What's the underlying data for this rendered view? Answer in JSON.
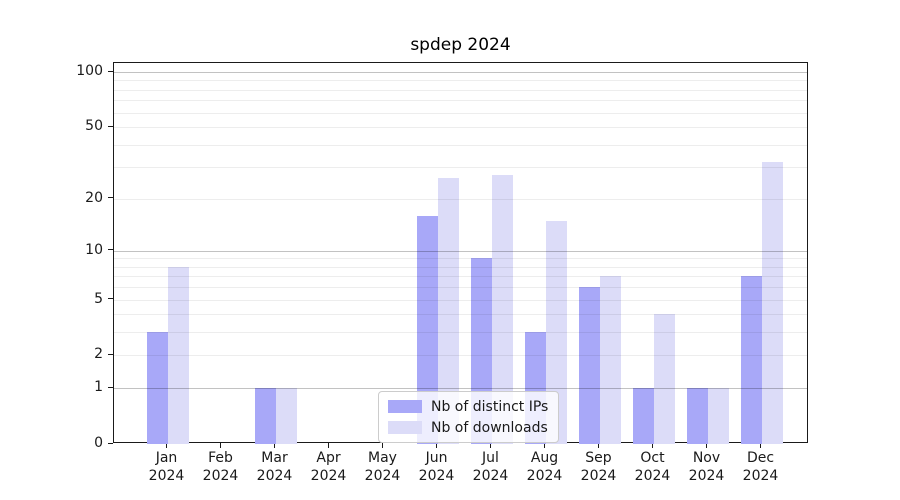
{
  "title": "spdep 2024",
  "legend": {
    "items": [
      {
        "label": "Nb of distinct IPs",
        "color": "#a8a8f8"
      },
      {
        "label": "Nb of downloads",
        "color": "#dcdcf8"
      }
    ]
  },
  "chart_data": {
    "type": "bar",
    "title": "spdep 2024",
    "categories": [
      "Jan 2024",
      "Feb 2024",
      "Mar 2024",
      "Apr 2024",
      "May 2024",
      "Jun 2024",
      "Jul 2024",
      "Aug 2024",
      "Sep 2024",
      "Oct 2024",
      "Nov 2024",
      "Dec 2024"
    ],
    "series": [
      {
        "name": "Nb of distinct IPs",
        "color": "#a8a8f8",
        "values": [
          3,
          0,
          1,
          0,
          0,
          16,
          9,
          3,
          6,
          1,
          1,
          7
        ]
      },
      {
        "name": "Nb of downloads",
        "color": "#dcdcf8",
        "values": [
          8,
          0,
          1,
          0,
          0,
          26,
          27,
          15,
          7,
          4,
          1,
          32
        ]
      }
    ],
    "xlabel": "",
    "ylabel": "",
    "yscale": "log1p",
    "ylim": [
      0,
      112
    ],
    "yticks": [
      0,
      1,
      2,
      5,
      10,
      20,
      50,
      100
    ],
    "major_gridlines": [
      1,
      10,
      100
    ],
    "minor_gridlines": [
      2,
      3,
      4,
      5,
      6,
      7,
      8,
      9,
      20,
      30,
      40,
      50,
      60,
      70,
      80,
      90
    ],
    "grid": "horizontal, drawn above bars",
    "legend_position": "lower center"
  }
}
